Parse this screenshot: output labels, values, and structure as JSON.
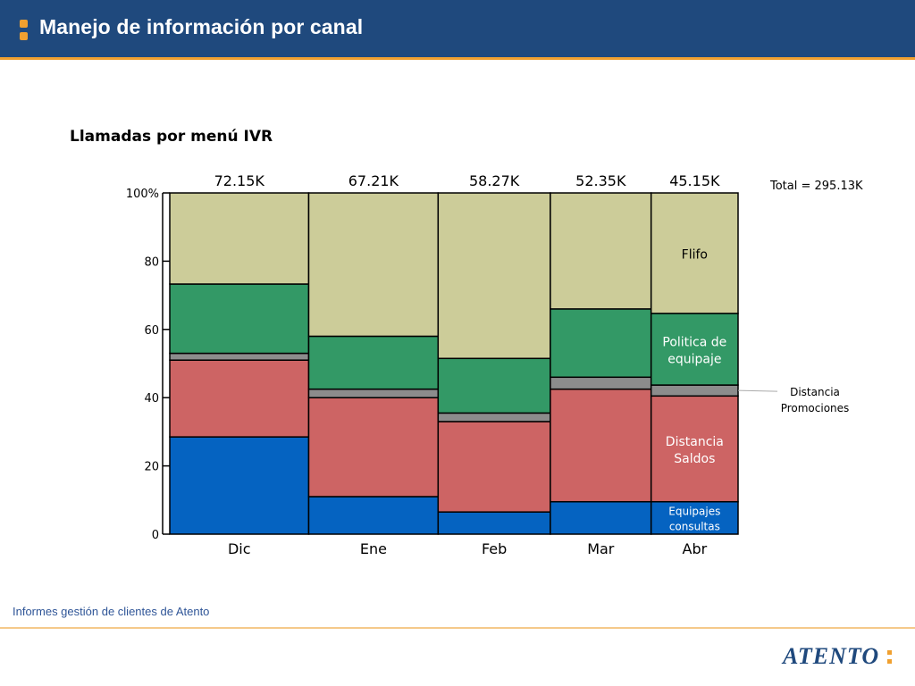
{
  "header": {
    "title": "Manejo de información por canal"
  },
  "chart_data": {
    "type": "bar",
    "subtype": "marimekko-100-percent-stacked",
    "title": "Llamadas por menú IVR",
    "categories": [
      "Dic",
      "Ene",
      "Feb",
      "Mar",
      "Abr"
    ],
    "totals_labels": [
      "72.15K",
      "67.21K",
      "58.27K",
      "52.35K",
      "45.15K"
    ],
    "totals": [
      72.15,
      67.21,
      58.27,
      52.35,
      45.15
    ],
    "grand_total_label": "Total = 295.13K",
    "ylim": [
      0,
      100
    ],
    "yticks": [
      "0",
      "20",
      "40",
      "60",
      "80",
      "100%"
    ],
    "grid": false,
    "series": [
      {
        "name": "Equipajes consultas",
        "label_lines": [
          "Equipajes",
          "consultas"
        ],
        "color": "#0563c1",
        "label_color": "#ffffff",
        "values": [
          28.5,
          11,
          6.5,
          9.5,
          9.5
        ]
      },
      {
        "name": "Distancia Saldos",
        "label_lines": [
          "Distancia",
          "Saldos"
        ],
        "color": "#cd6464",
        "label_color": "#ffffff",
        "values": [
          22.5,
          29,
          26.5,
          33,
          31
        ]
      },
      {
        "name": "Distancia Promociones",
        "label_lines": [
          "Distancia",
          "Promociones"
        ],
        "color": "#8c8c8c",
        "label_color": "#000000",
        "values": [
          2,
          2.5,
          2.5,
          3.5,
          3.2
        ],
        "label_outside": true
      },
      {
        "name": "Politica de equipaje",
        "label_lines": [
          "Politica de",
          "equipaje"
        ],
        "color": "#339966",
        "label_color": "#ffffff",
        "values": [
          20.3,
          15.5,
          16,
          20,
          21
        ],
        "label_text": "Politica de equipaje"
      },
      {
        "name": "Flifo",
        "label_lines": [
          "Flifo"
        ],
        "color": "#cccc99",
        "label_color": "#000000",
        "values": [
          26.7,
          42,
          48.5,
          34,
          35.3
        ]
      }
    ]
  },
  "footer": {
    "text": "Informes gestión de clientes de Atento"
  },
  "logo": {
    "text": "ATENTO"
  }
}
